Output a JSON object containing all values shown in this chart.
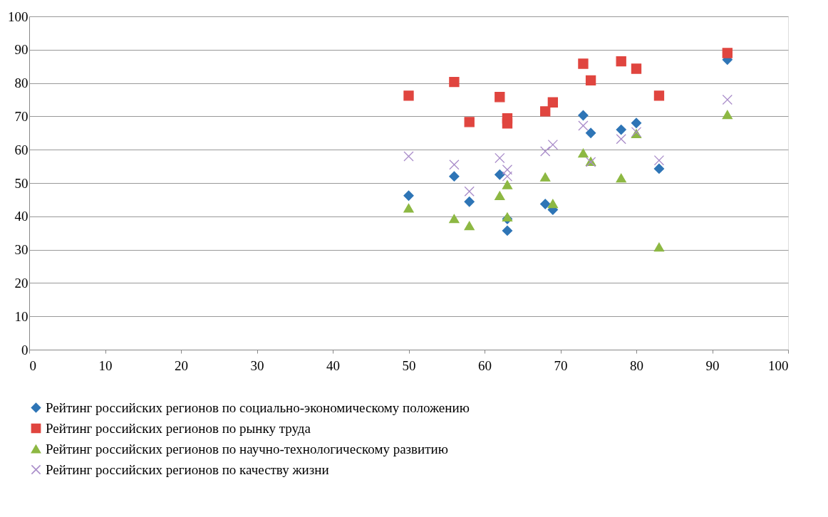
{
  "chart_data": {
    "type": "scatter",
    "xlim": [
      0,
      100
    ],
    "ylim": [
      0,
      100
    ],
    "xticks": [
      0,
      10,
      20,
      30,
      40,
      50,
      60,
      70,
      80,
      90,
      100
    ],
    "yticks": [
      0,
      10,
      20,
      30,
      40,
      50,
      60,
      70,
      80,
      90,
      100
    ],
    "grid": "y",
    "legend": "bottom",
    "x": [
      50,
      56,
      58,
      62,
      63,
      63,
      68,
      69,
      73,
      74,
      78,
      80,
      83,
      92
    ],
    "series": [
      {
        "name": "Рейтинг российских регионов по социально-экономическому положению",
        "color": "#2e75b6",
        "marker": "diamond",
        "values": [
          46.2,
          52,
          44.4,
          52.5,
          39.2,
          35.7,
          43.7,
          42,
          70.3,
          65,
          66,
          68,
          54.3,
          87
        ]
      },
      {
        "name": "Рейтинг российских регионов по рынку труда",
        "color": "#e0453f",
        "marker": "square",
        "values": [
          76.2,
          80.3,
          68.3,
          75.8,
          69.4,
          67.9,
          71.5,
          74.2,
          85.8,
          80.8,
          86.5,
          84.3,
          76.2,
          89
        ]
      },
      {
        "name": "Рейтинг российских регионов по научно-технологическому развитию",
        "color": "#8db843",
        "marker": "triangle",
        "values": [
          42.5,
          39.3,
          37.2,
          46.2,
          49.5,
          39.8,
          51.8,
          43.8,
          59,
          56.5,
          51.5,
          64.8,
          30.8,
          70.5
        ]
      },
      {
        "name": "Рейтинг российских регионов по качеству жизни",
        "color": "#a98cc9",
        "marker": "cross",
        "values": [
          58,
          55.5,
          47.5,
          57.5,
          54,
          52,
          59.5,
          61.5,
          67.2,
          56.3,
          63.2,
          65.3,
          56.8,
          75
        ]
      }
    ]
  }
}
